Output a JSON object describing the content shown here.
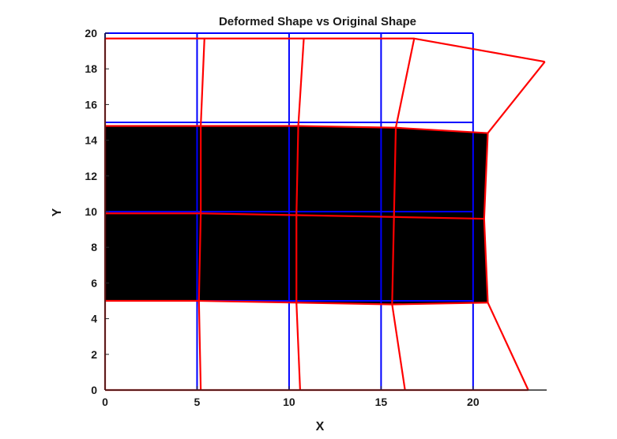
{
  "chart_data": {
    "type": "line",
    "title": "Deformed Shape  vs Original Shape",
    "xlabel": "X",
    "ylabel": "Y",
    "xlim": [
      0,
      24
    ],
    "ylim": [
      0,
      20
    ],
    "xticks": [
      "0",
      "5",
      "10",
      "15",
      "20"
    ],
    "yticks": [
      "0",
      "2",
      "4",
      "6",
      "8",
      "10",
      "12",
      "14",
      "16",
      "18",
      "20"
    ],
    "grid": false,
    "legend": "none",
    "colors": {
      "original": "#0000ff",
      "deformed": "#ff0000",
      "fill": "#000000",
      "axis": "#262626"
    },
    "series": [
      {
        "style": "original-mesh",
        "x": [
          0,
          5,
          10,
          15,
          20
        ],
        "y": [
          0,
          5,
          10,
          15,
          20
        ]
      },
      {
        "style": "deformed-mesh",
        "nodes": [
          [
            [
              0,
              0
            ],
            [
              5.2,
              0
            ],
            [
              10.6,
              0
            ],
            [
              16.3,
              0
            ],
            [
              23.0,
              0
            ]
          ],
          [
            [
              0,
              5.0
            ],
            [
              5.1,
              5.0
            ],
            [
              10.4,
              4.9
            ],
            [
              15.6,
              4.8
            ],
            [
              20.8,
              4.9
            ]
          ],
          [
            [
              0,
              9.9
            ],
            [
              5.2,
              9.9
            ],
            [
              10.4,
              9.8
            ],
            [
              15.7,
              9.7
            ],
            [
              20.6,
              9.6
            ]
          ],
          [
            [
              0,
              14.8
            ],
            [
              5.2,
              14.8
            ],
            [
              10.5,
              14.8
            ],
            [
              15.8,
              14.7
            ],
            [
              20.8,
              14.4
            ]
          ],
          [
            [
              0,
              19.7
            ],
            [
              5.4,
              19.7
            ],
            [
              10.8,
              19.7
            ],
            [
              16.8,
              19.7
            ],
            [
              23.9,
              18.4
            ]
          ]
        ],
        "filled_cells": [
          [
            1,
            0
          ],
          [
            1,
            1
          ],
          [
            1,
            2
          ],
          [
            1,
            3
          ],
          [
            2,
            0
          ],
          [
            2,
            1
          ],
          [
            2,
            2
          ],
          [
            2,
            3
          ]
        ]
      }
    ]
  }
}
